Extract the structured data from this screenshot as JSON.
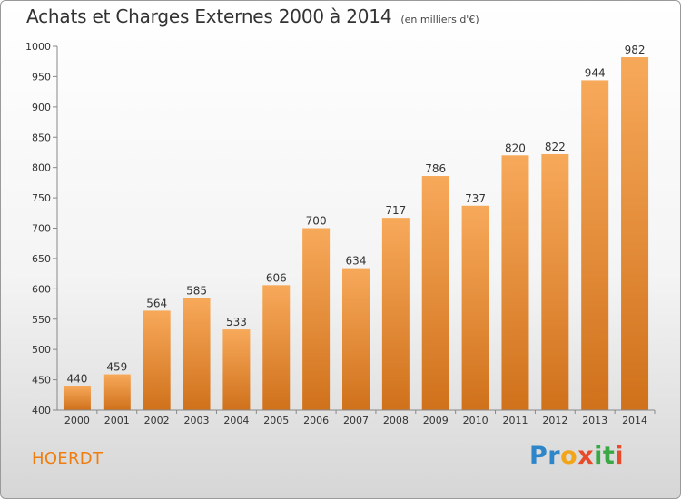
{
  "header": {
    "title": "Achats et Charges Externes 2000 à 2014",
    "unit": "(en milliers d'€)"
  },
  "footer": {
    "city": "HOERDT",
    "logo": "Proxiti"
  },
  "colors": {
    "bar_top": "#f7a95a",
    "bar_bottom": "#d0711b",
    "city_text": "#f07d10",
    "axis": "#888888"
  },
  "chart_data": {
    "type": "bar",
    "categories": [
      "2000",
      "2001",
      "2002",
      "2003",
      "2004",
      "2005",
      "2006",
      "2007",
      "2008",
      "2009",
      "2010",
      "2011",
      "2012",
      "2013",
      "2014"
    ],
    "values": [
      440,
      459,
      564,
      585,
      533,
      606,
      700,
      634,
      717,
      786,
      737,
      820,
      822,
      944,
      982
    ],
    "title": "Achats et Charges Externes 2000 à 2014",
    "subtitle": "(en milliers d'€)",
    "xlabel": "",
    "ylabel": "",
    "ylim": [
      400,
      1000
    ],
    "yticks": [
      400,
      450,
      500,
      550,
      600,
      650,
      700,
      750,
      800,
      850,
      900,
      950,
      1000
    ],
    "grid": false,
    "data_labels": true
  }
}
